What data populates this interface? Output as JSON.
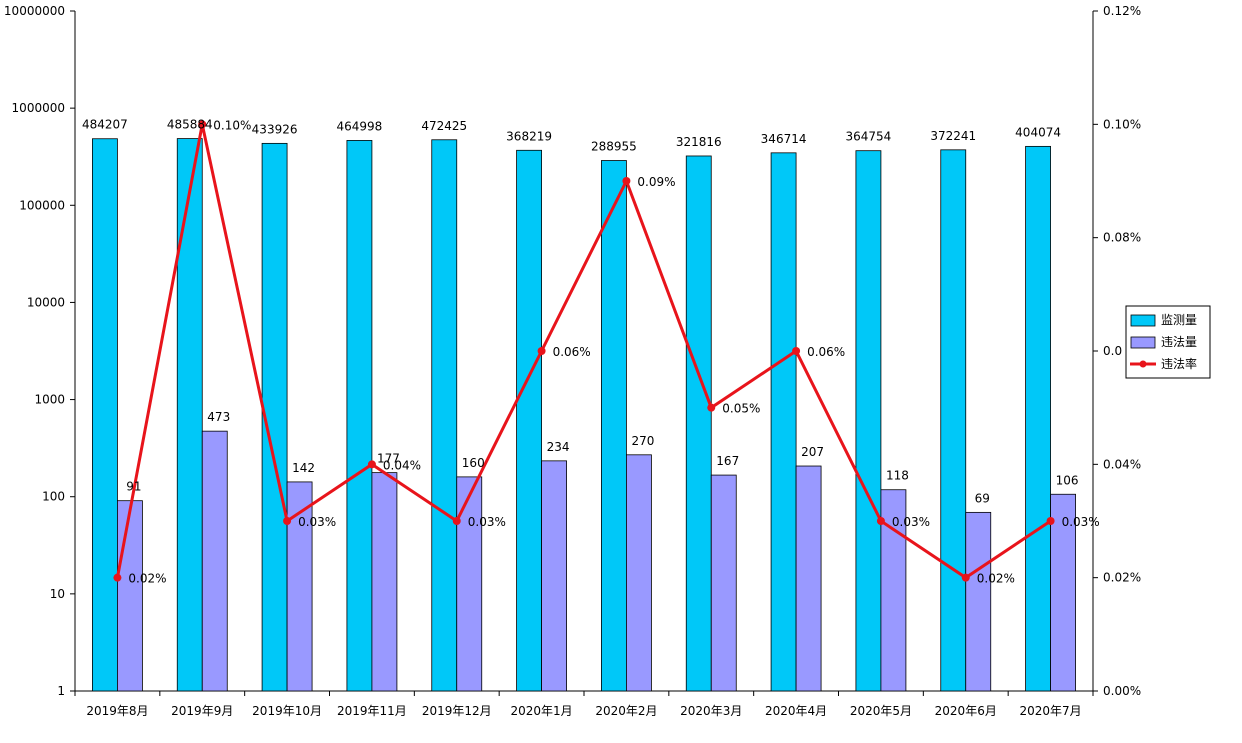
{
  "chart_data": {
    "type": "bar",
    "categories": [
      "2019年8月",
      "2019年9月",
      "2019年10月",
      "2019年11月",
      "2019年12月",
      "2020年1月",
      "2020年2月",
      "2020年3月",
      "2020年4月",
      "2020年5月",
      "2020年6月",
      "2020年7月"
    ],
    "series": [
      {
        "name": "监测量",
        "type": "bar",
        "axis": "left",
        "color": "#00c8f8",
        "values": [
          484207,
          485884,
          433926,
          464998,
          472425,
          368219,
          288955,
          321816,
          346714,
          364754,
          372241,
          404074
        ],
        "labels": [
          "484207",
          "485884",
          "433926",
          "464998",
          "472425",
          "368219",
          "288955",
          "321816",
          "346714",
          "364754",
          "372241",
          "404074"
        ]
      },
      {
        "name": "违法量",
        "type": "bar",
        "axis": "left",
        "color": "#9999ff",
        "values": [
          91,
          473,
          142,
          177,
          160,
          234,
          270,
          167,
          207,
          118,
          69,
          106
        ],
        "labels": [
          "91",
          "473",
          "142",
          "177",
          "160",
          "234",
          "270",
          "167",
          "207",
          "118",
          "69",
          "106"
        ]
      },
      {
        "name": "违法率",
        "type": "line",
        "axis": "right",
        "color": "#e8141b",
        "values": [
          0.0002,
          0.001,
          0.0003,
          0.0004,
          0.0003,
          0.0006,
          0.0009,
          0.0005,
          0.0006,
          0.0003,
          0.0002,
          0.0003
        ],
        "labels": [
          "0.02%",
          "0.10%",
          "0.03%",
          "0.04%",
          "0.03%",
          "0.06%",
          "0.09%",
          "0.05%",
          "0.06%",
          "0.03%",
          "0.02%",
          "0.03%"
        ]
      }
    ],
    "y_left": {
      "scale": "log",
      "range": [
        1,
        10000000
      ],
      "ticks": [
        1,
        10,
        100,
        1000,
        10000,
        100000,
        1000000,
        10000000
      ],
      "tick_labels": [
        "1",
        "10",
        "100",
        "1000",
        "10000",
        "100000",
        "1000000",
        "10000000"
      ]
    },
    "y_right": {
      "scale": "linear",
      "range": [
        0,
        0.0012
      ],
      "ticks": [
        0,
        0.0002,
        0.0004,
        0.0006,
        0.0008,
        0.001,
        0.0012
      ],
      "tick_labels": [
        "0.00%",
        "0.02%",
        "0.04%",
        "0.0",
        "0.08%",
        "0.10%",
        "0.12%"
      ]
    },
    "legend_position": "right",
    "grid": false
  }
}
